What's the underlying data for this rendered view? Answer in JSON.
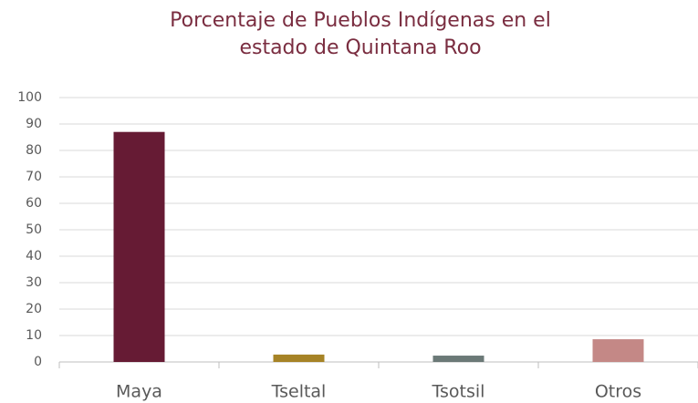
{
  "chart_data": {
    "type": "bar",
    "title": "Porcentaje de Pueblos Indígenas en el estado de Quintana Roo",
    "categories": [
      "Maya",
      "Tseltal",
      "Tsotsil",
      "Otros"
    ],
    "values": [
      87,
      2.8,
      2.4,
      8.6
    ],
    "colors": [
      "#661b34",
      "#a68326",
      "#6b7977",
      "#c48886"
    ],
    "ylim": [
      0,
      100
    ],
    "yticks": [
      0,
      10,
      20,
      30,
      40,
      50,
      60,
      70,
      80,
      90,
      100
    ],
    "grid": true
  }
}
